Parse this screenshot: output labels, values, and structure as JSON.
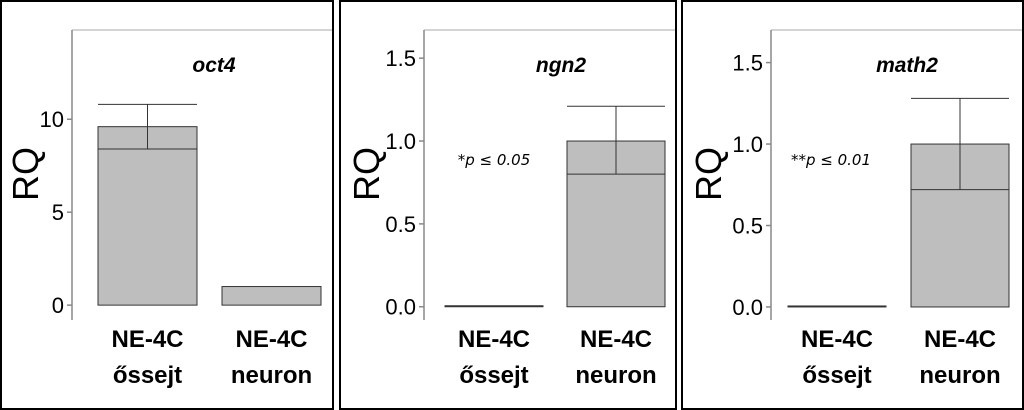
{
  "colors": {
    "bar_fill": "#bebebe",
    "line": "#333333"
  },
  "chart_data": [
    {
      "type": "bar",
      "title": "oct4",
      "ylabel": "RQ",
      "categories": [
        [
          "NE-4C",
          "őssejt"
        ],
        [
          "NE-4C",
          "neuron"
        ]
      ],
      "values": [
        9.6,
        1.0
      ],
      "lower": [
        8.4,
        1.0
      ],
      "error_upper": [
        10.8,
        1.0
      ],
      "ylim": [
        -0.8,
        14.8
      ],
      "yticks": [
        0,
        5,
        10
      ],
      "ytick_labels": [
        "0",
        "5",
        "10"
      ],
      "annotation": ""
    },
    {
      "type": "bar",
      "title": "ngn2",
      "ylabel": "RQ",
      "categories": [
        [
          "NE-4C",
          "őssejt"
        ],
        [
          "NE-4C",
          "neuron"
        ]
      ],
      "values": [
        0.0,
        1.0
      ],
      "lower": [
        0.0,
        0.8
      ],
      "error_upper": [
        0.0,
        1.21
      ],
      "ylim": [
        -0.08,
        1.67
      ],
      "yticks": [
        0,
        0.5,
        1.0,
        1.5
      ],
      "ytick_labels": [
        "0.0",
        "0.5",
        "1.0",
        "1.5"
      ],
      "annotation": "*p ≤ 0.05"
    },
    {
      "type": "bar",
      "title": "math2",
      "ylabel": "RQ",
      "categories": [
        [
          "NE-4C",
          "őssejt"
        ],
        [
          "NE-4C",
          "neuron"
        ]
      ],
      "values": [
        0.0,
        1.0
      ],
      "lower": [
        0.0,
        0.72
      ],
      "error_upper": [
        0.0,
        1.28
      ],
      "ylim": [
        -0.08,
        1.7
      ],
      "yticks": [
        0,
        0.5,
        1.0,
        1.5
      ],
      "ytick_labels": [
        "0.0",
        "0.5",
        "1.0",
        "1.5"
      ],
      "annotation": "**p ≤ 0.01"
    }
  ]
}
